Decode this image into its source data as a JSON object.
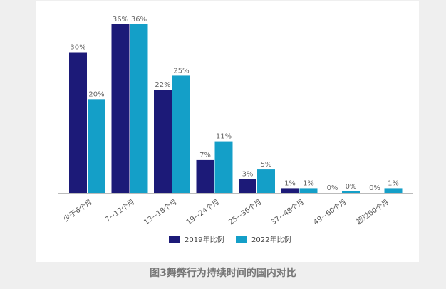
{
  "chart_data": {
    "type": "bar",
    "title": "图3舞弊行为持续时间的国内对比",
    "categories": [
      "少于6个月",
      "7~12个月",
      "13~18个月",
      "19~24个月",
      "25~36个月",
      "37~48个月",
      "49~60个月",
      "超过60个月"
    ],
    "series": [
      {
        "name": "2019年比例",
        "color": "#1c1a78",
        "values": [
          30,
          36,
          22,
          7,
          3,
          1,
          0,
          0
        ]
      },
      {
        "name": "2022年比例",
        "color": "#149fc8",
        "values": [
          20,
          36,
          25,
          11,
          5,
          1,
          0,
          1
        ]
      }
    ],
    "ylim": [
      0,
      36
    ],
    "legend": "bottom",
    "grid": false
  }
}
